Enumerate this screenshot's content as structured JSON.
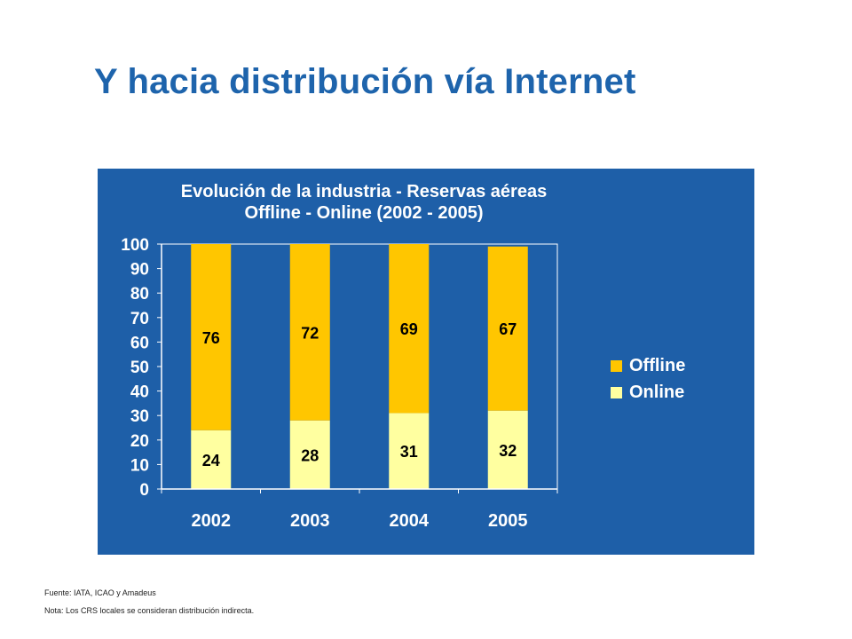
{
  "slide_title": "Y hacia distribución vía Internet",
  "colors": {
    "panel_background": "#1e5fa8",
    "title_color": "#1e64ac",
    "offline": "#ffc600",
    "online": "#ffffa0"
  },
  "chart_data": {
    "type": "bar",
    "stacked": true,
    "title_lines": [
      "Evolución de la industria - Reservas aéreas",
      "Offline - Online (2002 - 2005)"
    ],
    "categories": [
      "2002",
      "2003",
      "2004",
      "2005"
    ],
    "series": [
      {
        "name": "Online",
        "values": [
          24,
          28,
          31,
          32
        ],
        "color": "#ffffa0"
      },
      {
        "name": "Offline",
        "values": [
          76,
          72,
          69,
          67
        ],
        "color": "#ffc600"
      }
    ],
    "ylim": [
      0,
      100
    ],
    "yticks": [
      0,
      10,
      20,
      30,
      40,
      50,
      60,
      70,
      80,
      90,
      100
    ],
    "legend_position": "right",
    "legend_order": [
      "Offline",
      "Online"
    ],
    "grid": false
  },
  "footnotes": {
    "source": "Fuente: IATA, ICAO y Amadeus",
    "note": "Nota: Los CRS locales se consideran distribución indirecta."
  }
}
